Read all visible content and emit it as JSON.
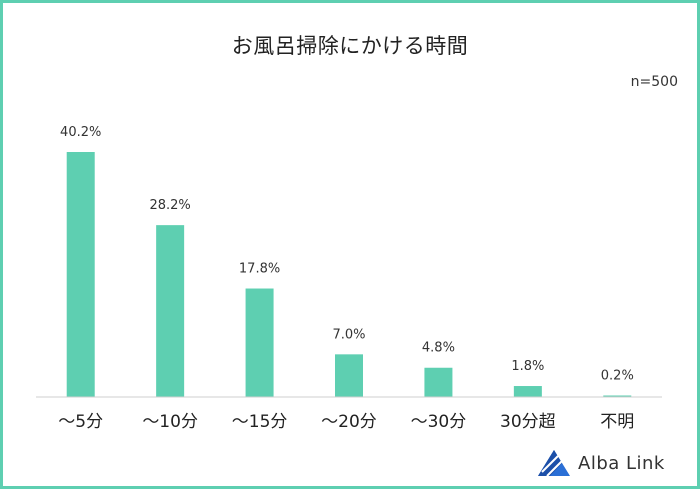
{
  "chart_data": {
    "type": "bar",
    "title": "お風呂掃除にかける時間",
    "note": "n=500",
    "categories": [
      "～5分",
      "～10分",
      "～15分",
      "～20分",
      "～30分",
      "30分超",
      "不明"
    ],
    "values": [
      40.2,
      28.2,
      17.8,
      7.0,
      4.8,
      1.8,
      0.2
    ],
    "value_labels": [
      "40.2%",
      "28.2%",
      "17.8%",
      "7.0%",
      "4.8%",
      "1.8%",
      "0.2%"
    ],
    "unit": "%",
    "ylim": [
      0,
      40.2
    ],
    "bar_color": "#5ecfb1",
    "grid": false,
    "legend": "none"
  },
  "brand": {
    "logo_text": "Alba Link",
    "logo_color": "#2a6fd6"
  }
}
